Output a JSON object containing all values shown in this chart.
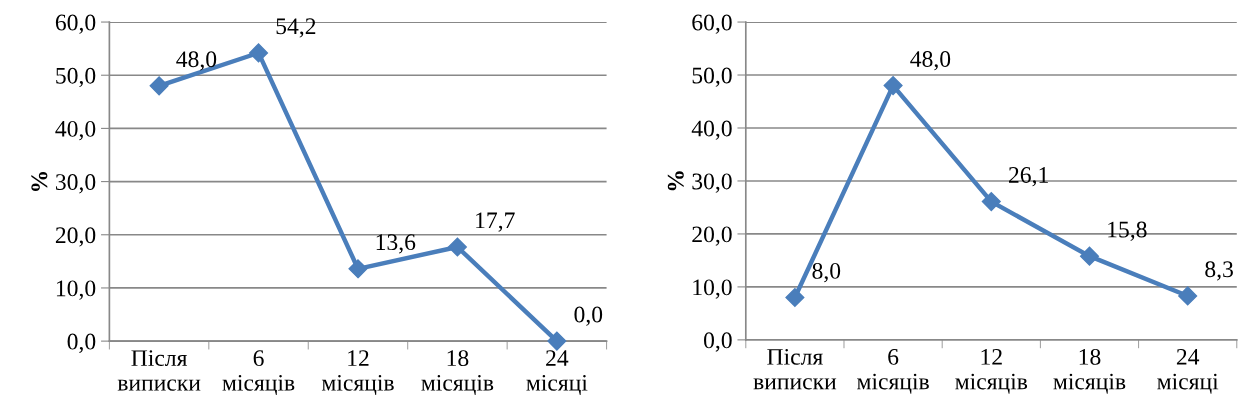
{
  "chart_data": [
    {
      "type": "line",
      "ylabel": "%",
      "categories": [
        "Після\nвиписки",
        "6\nмісяців",
        "12\nмісяців",
        "18\nмісяців",
        "24\nмісяці"
      ],
      "series": [
        {
          "color": "#4a7ebb",
          "values": [
            48.0,
            54.2,
            13.6,
            17.7,
            0.0
          ],
          "value_labels": [
            "48,0",
            "54,2",
            "13,6",
            "17,7",
            "0,0"
          ]
        }
      ],
      "ylim": [
        0,
        60
      ],
      "yticks": [
        {
          "value": 0,
          "label": "0,0"
        },
        {
          "value": 10,
          "label": "10,0"
        },
        {
          "value": 20,
          "label": "20,0"
        },
        {
          "value": 30,
          "label": "30,0"
        },
        {
          "value": 40,
          "label": "40,0"
        },
        {
          "value": 50,
          "label": "50,0"
        },
        {
          "value": 60,
          "label": "60,0"
        }
      ],
      "grid": "y",
      "marker": "diamond",
      "line_style": "solid",
      "legend": false
    },
    {
      "type": "line",
      "ylabel": "%",
      "categories": [
        "Після\nвиписки",
        "6\nмісяців",
        "12\nмісяців",
        "18\nмісяців",
        "24\nмісяці"
      ],
      "series": [
        {
          "color": "#4a7ebb",
          "values": [
            8.0,
            48.0,
            26.1,
            15.8,
            8.3
          ],
          "value_labels": [
            "8,0",
            "48,0",
            "26,1",
            "15,8",
            "8,3"
          ]
        }
      ],
      "ylim": [
        0,
        60
      ],
      "yticks": [
        {
          "value": 0,
          "label": "0,0"
        },
        {
          "value": 10,
          "label": "10,0"
        },
        {
          "value": 20,
          "label": "20,0"
        },
        {
          "value": 30,
          "label": "30,0"
        },
        {
          "value": 40,
          "label": "40,0"
        },
        {
          "value": 50,
          "label": "50,0"
        },
        {
          "value": 60,
          "label": "60,0"
        }
      ],
      "grid": "y",
      "marker": "diamond",
      "line_style": "solid",
      "legend": false
    }
  ]
}
